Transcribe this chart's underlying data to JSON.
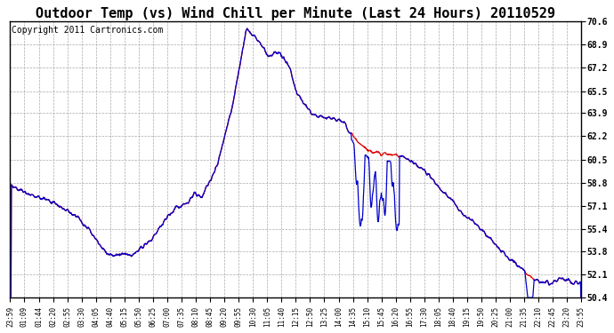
{
  "title": "Outdoor Temp (vs) Wind Chill per Minute (Last 24 Hours) 20110529",
  "copyright": "Copyright 2011 Cartronics.com",
  "y_ticks": [
    50.4,
    52.1,
    53.8,
    55.4,
    57.1,
    58.8,
    60.5,
    62.2,
    63.9,
    65.5,
    67.2,
    68.9,
    70.6
  ],
  "ylim": [
    50.4,
    70.6
  ],
  "x_labels": [
    "23:59",
    "01:09",
    "01:44",
    "02:20",
    "02:55",
    "03:30",
    "04:05",
    "04:40",
    "05:15",
    "05:50",
    "06:25",
    "07:00",
    "07:35",
    "08:10",
    "08:45",
    "09:20",
    "09:55",
    "10:30",
    "11:05",
    "11:40",
    "12:15",
    "12:50",
    "13:25",
    "14:00",
    "14:35",
    "15:10",
    "15:45",
    "16:20",
    "16:55",
    "17:30",
    "18:05",
    "18:40",
    "19:15",
    "19:50",
    "20:25",
    "21:00",
    "21:35",
    "22:10",
    "22:45",
    "23:20",
    "23:55"
  ],
  "bg_color": "#ffffff",
  "grid_color": "#aaaaaa",
  "red_color": "#dd0000",
  "blue_color": "#0000cc",
  "title_fontsize": 11,
  "copyright_fontsize": 7,
  "figsize": [
    6.9,
    3.75
  ],
  "dpi": 100
}
